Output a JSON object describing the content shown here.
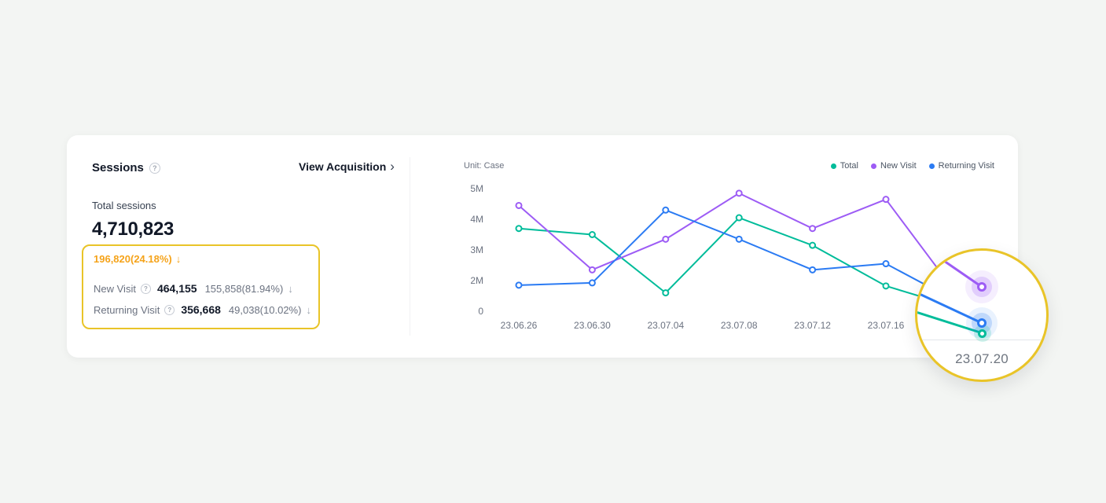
{
  "page": {
    "background": "#F3F5F3"
  },
  "icons": {
    "help": "?",
    "chevron_right": "›"
  },
  "panel": {
    "title": "Sessions",
    "view_link": "View Acquisition",
    "total_label": "Total sessions",
    "total_value": "4,710,823",
    "highlight_color": "#E9C428",
    "delta": {
      "text": "196,820(24.18%)",
      "arrow": "↓",
      "color": "#F5A31A"
    },
    "rows": [
      {
        "label": "New Visit",
        "value": "464,155",
        "delta": "155,858(81.94%)",
        "arrow": "↓"
      },
      {
        "label": "Returning Visit",
        "value": "356,668",
        "delta": "49,038(10.02%)",
        "arrow": "↓"
      }
    ]
  },
  "chart": {
    "unit_label": "Unit: Case",
    "legend": [
      {
        "label": "Total",
        "color": "#00BC9A"
      },
      {
        "label": "New Visit",
        "color": "#9D5CF5"
      },
      {
        "label": "Returning Visit",
        "color": "#2B7BF3"
      }
    ]
  },
  "chart_data": {
    "type": "line",
    "unit": "Case",
    "x": [
      "23.06.26",
      "23.06.30",
      "23.07.04",
      "23.07.08",
      "23.07.12",
      "23.07.16",
      "23.07.20"
    ],
    "y_ticks": [
      "0",
      "2M",
      "3M",
      "4M",
      "5M"
    ],
    "y_tick_values_millions": [
      0,
      2,
      3,
      4,
      5
    ],
    "values_unit": "millions",
    "grid": false,
    "legend_position": "top-right",
    "series": [
      {
        "name": "Total",
        "color": "#00BC9A",
        "values": [
          3.7,
          3.5,
          1.2,
          4.05,
          3.15,
          1.65,
          0.2
        ]
      },
      {
        "name": "New Visit",
        "color": "#9D5CF5",
        "values": [
          4.45,
          2.35,
          3.35,
          4.85,
          3.7,
          4.65,
          0.9
        ]
      },
      {
        "name": "Returning Visit",
        "color": "#2B7BF3",
        "values": [
          1.7,
          1.85,
          4.3,
          3.35,
          2.35,
          2.55,
          0.55
        ]
      }
    ],
    "highlighted_x": "23.07.20"
  },
  "zoom": {
    "date": "23.07.20",
    "border_color": "#E9C428"
  }
}
